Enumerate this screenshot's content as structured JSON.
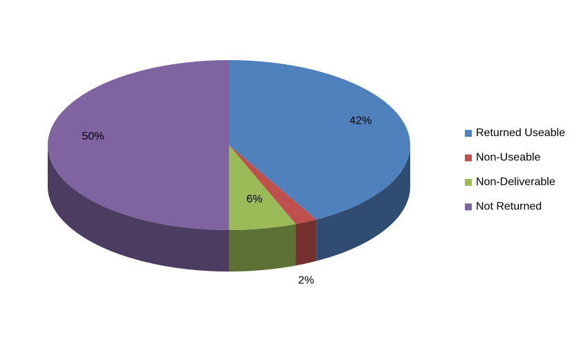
{
  "chart_data": {
    "type": "pie",
    "categories": [
      "Returned Useable",
      "Non-Useable",
      "Non-Deliverable",
      "Not Returned"
    ],
    "values": [
      42,
      2,
      6,
      50
    ],
    "value_labels": [
      "42%",
      "2%",
      "6%",
      "50%"
    ],
    "colors": [
      "#4f81bd",
      "#c0504d",
      "#9bbb59",
      "#8064a2"
    ],
    "legend": "right"
  }
}
